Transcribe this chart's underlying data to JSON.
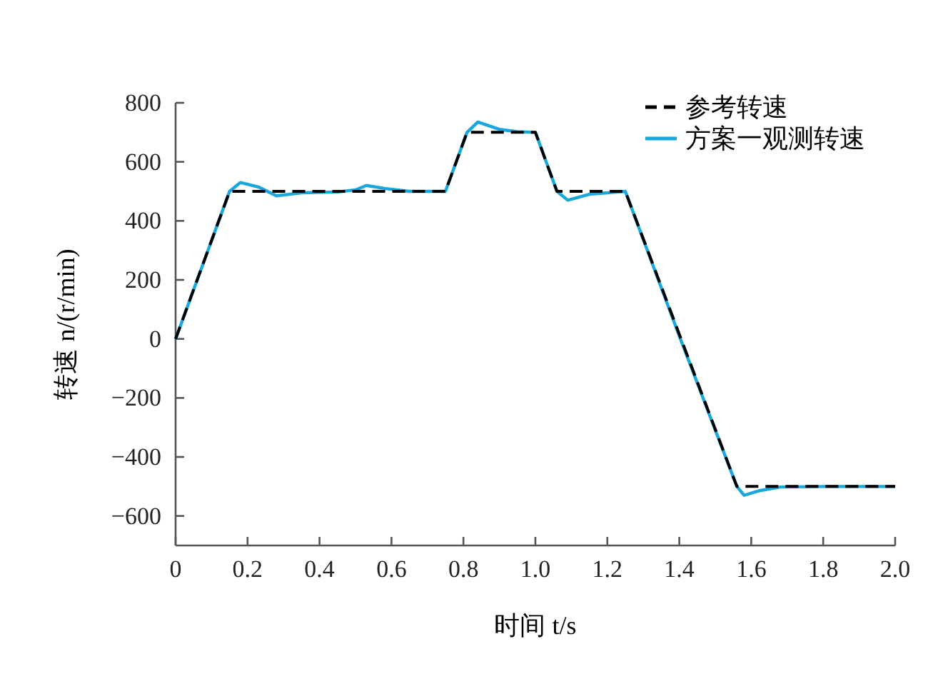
{
  "chart_data": {
    "type": "line",
    "xlabel": "时间 t/s",
    "ylabel": "转速 n/(r/min)",
    "xlim": [
      0,
      2.0
    ],
    "ylim": [
      -700,
      800
    ],
    "xticks": [
      0,
      0.2,
      0.4,
      0.6,
      0.8,
      {
        "value": 1.0,
        "label": "1.0"
      },
      1.2,
      1.4,
      1.6,
      1.8,
      {
        "value": 2.0,
        "label": "2.0"
      }
    ],
    "yticks": [
      -600,
      -400,
      -200,
      0,
      200,
      400,
      600,
      800
    ],
    "grid": false,
    "legend": "top right",
    "series": [
      {
        "name": "参考转速",
        "color": "#000000",
        "line_style": "dashed",
        "x": [
          0,
          0.15,
          0.75,
          0.81,
          1.0,
          1.06,
          1.25,
          1.56,
          2.0
        ],
        "values": [
          0,
          500,
          500,
          700,
          700,
          500,
          500,
          -500,
          -500
        ]
      },
      {
        "name": "方案一观测转速",
        "color": "#1aa7dc",
        "line_style": "solid",
        "x": [
          0,
          0.15,
          0.18,
          0.23,
          0.28,
          0.35,
          0.45,
          0.5,
          0.53,
          0.58,
          0.65,
          0.75,
          0.81,
          0.84,
          0.9,
          0.95,
          1.0,
          1.06,
          1.09,
          1.15,
          1.25,
          1.4,
          1.56,
          1.58,
          1.62,
          1.68,
          1.8,
          2.0
        ],
        "values": [
          0,
          500,
          530,
          515,
          485,
          495,
          498,
          505,
          520,
          510,
          500,
          500,
          700,
          735,
          710,
          702,
          700,
          500,
          470,
          490,
          500,
          10,
          -500,
          -530,
          -515,
          -502,
          -500,
          -500
        ]
      }
    ]
  }
}
